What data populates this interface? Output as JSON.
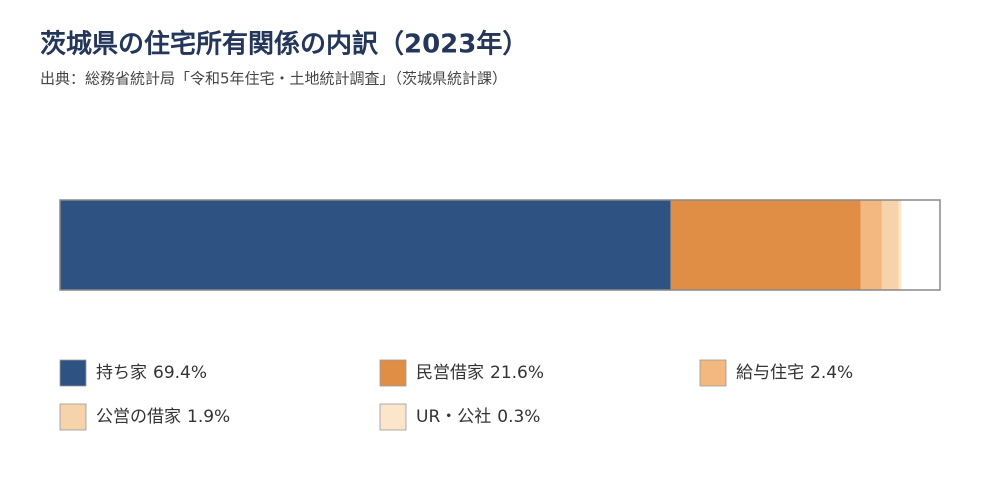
{
  "chart_data": {
    "type": "stacked-bar",
    "title": "茨城県の住宅所有関係の内訳（2023年）",
    "subtitle": "出典：総務省統計局「令和5年住宅・土地統計調査」（茨城県統計課）",
    "xlim": [
      0,
      100
    ],
    "series": [
      {
        "name": "持ち家",
        "color": "#2e5281",
        "values": [
          69.4
        ],
        "value_labels": [
          "69.4%"
        ]
      },
      {
        "name": "民営借家",
        "color": "#e08e45",
        "values": [
          21.6
        ],
        "value_labels": [
          "21.6%"
        ]
      },
      {
        "name": "給与住宅",
        "color": "#f2b880",
        "values": [
          2.4
        ],
        "value_labels": [
          "2.4%"
        ]
      },
      {
        "name": "公営の借家",
        "color": "#f6d3aa",
        "values": [
          1.9
        ],
        "value_labels": [
          "1.9%"
        ]
      },
      {
        "name": "UR・公社",
        "color": "#fbe6cc",
        "values": [
          0.3
        ],
        "value_labels": [
          "0.3%"
        ]
      }
    ]
  }
}
